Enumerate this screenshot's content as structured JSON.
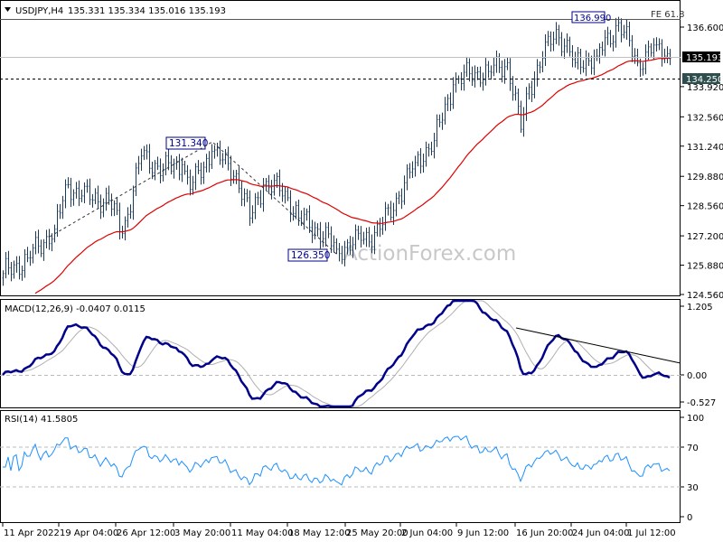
{
  "header": {
    "symbol": "USDJPY,H4",
    "ohlc": "135.331 135.334 135.016 135.193"
  },
  "watermark": "ActionForex.com",
  "colors": {
    "bars": "#1b3a5c",
    "ma": "#e00000",
    "macd": "#00008b",
    "signal": "#b0b0b0",
    "rsi": "#1e90ff"
  },
  "chart_data": [
    {
      "type": "ohlc",
      "title": "USDJPY,H4",
      "y_ticks": [
        "136.600",
        "133.920",
        "132.560",
        "131.240",
        "129.880",
        "128.560",
        "127.200",
        "125.880",
        "124.560"
      ],
      "ylim": [
        124.56,
        136.6
      ],
      "last_price": "135.193",
      "level_line": "134.250",
      "annotations": {
        "high_label": "136.990",
        "peak_label": "131.340",
        "trough_label": "126.350",
        "fe_label": "FE 61.8"
      },
      "close_keypoints": [
        {
          "bar": 0,
          "close": 125.5
        },
        {
          "bar": 9,
          "close": 126.2
        },
        {
          "bar": 19,
          "close": 127.5
        },
        {
          "bar": 24,
          "close": 129.5
        },
        {
          "bar": 29,
          "close": 129.0
        },
        {
          "bar": 39,
          "close": 128.8
        },
        {
          "bar": 44,
          "close": 127.3
        },
        {
          "bar": 51,
          "close": 130.8
        },
        {
          "bar": 59,
          "close": 130.2
        },
        {
          "bar": 66,
          "close": 130.4
        },
        {
          "bar": 69,
          "close": 129.3
        },
        {
          "bar": 77,
          "close": 131.0
        },
        {
          "bar": 86,
          "close": 130.0
        },
        {
          "bar": 91,
          "close": 128.0
        },
        {
          "bar": 96,
          "close": 129.5
        },
        {
          "bar": 104,
          "close": 129.2
        },
        {
          "bar": 109,
          "close": 128.0
        },
        {
          "bar": 116,
          "close": 127.5
        },
        {
          "bar": 123,
          "close": 126.6
        },
        {
          "bar": 132,
          "close": 127.0
        },
        {
          "bar": 139,
          "close": 127.5
        },
        {
          "bar": 146,
          "close": 129.0
        },
        {
          "bar": 152,
          "close": 130.5
        },
        {
          "bar": 159,
          "close": 131.5
        },
        {
          "bar": 166,
          "close": 134.0
        },
        {
          "bar": 172,
          "close": 134.5
        },
        {
          "bar": 179,
          "close": 134.6
        },
        {
          "bar": 186,
          "close": 135.0
        },
        {
          "bar": 191,
          "close": 132.0
        },
        {
          "bar": 194,
          "close": 133.9
        },
        {
          "bar": 199,
          "close": 135.2
        },
        {
          "bar": 204,
          "close": 136.5
        },
        {
          "bar": 211,
          "close": 135.0
        },
        {
          "bar": 219,
          "close": 135.3
        },
        {
          "bar": 227,
          "close": 136.8
        },
        {
          "bar": 234,
          "close": 135.0
        },
        {
          "bar": 241,
          "close": 135.8
        },
        {
          "bar": 246,
          "close": 135.19
        }
      ],
      "x_ticks": [
        "11 Apr 2022",
        "19 Apr 04:00",
        "26 Apr 12:00",
        "3 May 20:00",
        "11 May 04:00",
        "18 May 12:00",
        "25 May 20:00",
        "2 Jun 04:00",
        "9 Jun 12:00",
        "16 Jun 20:00",
        "24 Jun 04:00",
        "1 Jul 12:00"
      ]
    },
    {
      "type": "line",
      "title": "MACD(12,26,9) -0.0407 0.0115",
      "y_ticks": [
        "1.205",
        "0.00",
        "-0.527"
      ],
      "ylim": [
        -0.527,
        1.205
      ]
    },
    {
      "type": "line",
      "title": "RSI(14) 41.5805",
      "y_ticks": [
        "100",
        "70",
        "30",
        "0"
      ],
      "ylim": [
        0,
        100
      ],
      "levels": [
        70,
        30
      ]
    }
  ]
}
